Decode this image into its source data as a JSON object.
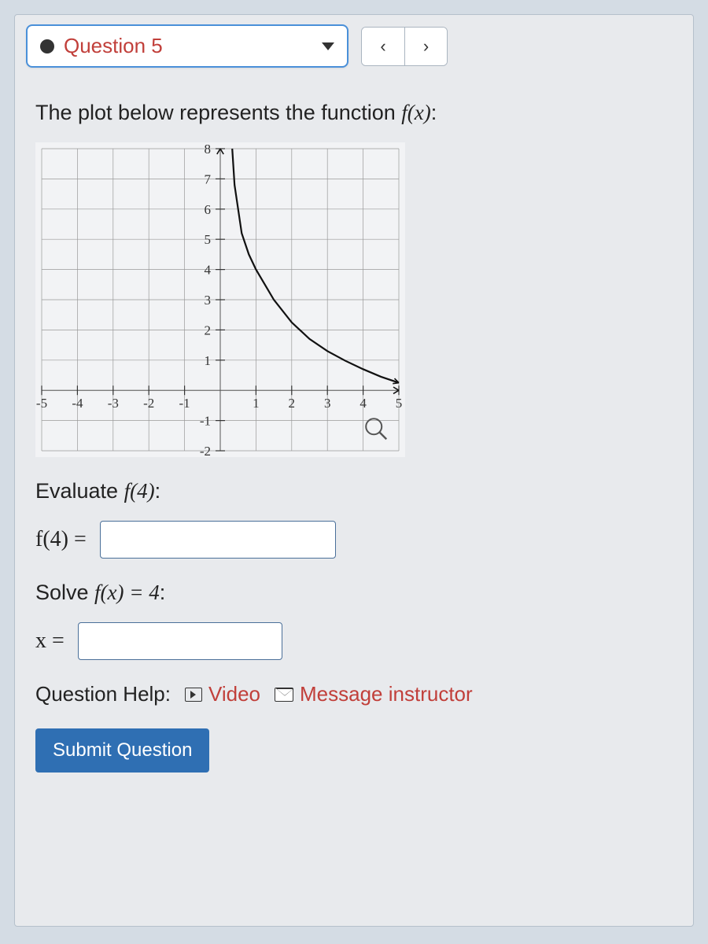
{
  "toolbar": {
    "question_label": "Question 5",
    "prev_symbol": "‹",
    "next_symbol": "›"
  },
  "prompt": {
    "text_before_fx": "The plot below represents the function ",
    "fx_expr": "f(x)",
    "text_after_fx": ":"
  },
  "chart": {
    "type": "line",
    "xlim": [
      -5,
      5
    ],
    "ylim": [
      -2,
      8
    ],
    "xtick_step": 1,
    "ytick_step": 1,
    "tick_length": 6,
    "xticks_labeled": [
      -5,
      -4,
      -3,
      -2,
      -1,
      1,
      2,
      3,
      4,
      5
    ],
    "yticks_labeled": [
      -2,
      -1,
      1,
      2,
      3,
      4,
      5,
      6,
      7,
      8
    ],
    "background_color": "#f2f3f5",
    "gridline_color": "#999999",
    "axis_color": "#555555",
    "curve_color": "#111111",
    "curve_width": 2.2,
    "label_font_family": "Comic Sans MS",
    "label_fontsize": 17,
    "label_color": "#333333",
    "curve_points": [
      [
        0.05,
        40
      ],
      [
        0.1,
        20
      ],
      [
        0.2,
        10.5
      ],
      [
        0.4,
        6.8
      ],
      [
        0.6,
        5.2
      ],
      [
        0.8,
        4.5
      ],
      [
        1.0,
        4.0
      ],
      [
        1.5,
        3.0
      ],
      [
        2.0,
        2.25
      ],
      [
        2.5,
        1.7
      ],
      [
        3.0,
        1.3
      ],
      [
        3.5,
        0.98
      ],
      [
        4.0,
        0.7
      ],
      [
        4.5,
        0.45
      ],
      [
        5.0,
        0.25
      ]
    ],
    "arrows": {
      "size": 7,
      "x_end": [
        5,
        0
      ],
      "top_end": [
        0,
        8
      ]
    }
  },
  "q1": {
    "label_before": "Evaluate ",
    "expr": "f(4)",
    "label_after": ":",
    "answer_label": "f(4) =",
    "input_value": "",
    "placeholder": ""
  },
  "q2": {
    "label_before": "Solve ",
    "expr": "f(x) = 4",
    "label_after": ":",
    "answer_label": "x =",
    "input_value": "",
    "placeholder": ""
  },
  "help": {
    "label": "Question Help:",
    "video": "Video",
    "message": "Message instructor"
  },
  "submit_label": "Submit Question",
  "colors": {
    "page_bg": "#d4dce4",
    "panel_bg": "#e8eaed",
    "panel_border": "#b5c0cb",
    "selector_border": "#4a90d9",
    "accent_link": "#c13f3a",
    "button_bg": "#2f6fb3",
    "button_text": "#ffffff",
    "input_border": "#4a6f99"
  }
}
